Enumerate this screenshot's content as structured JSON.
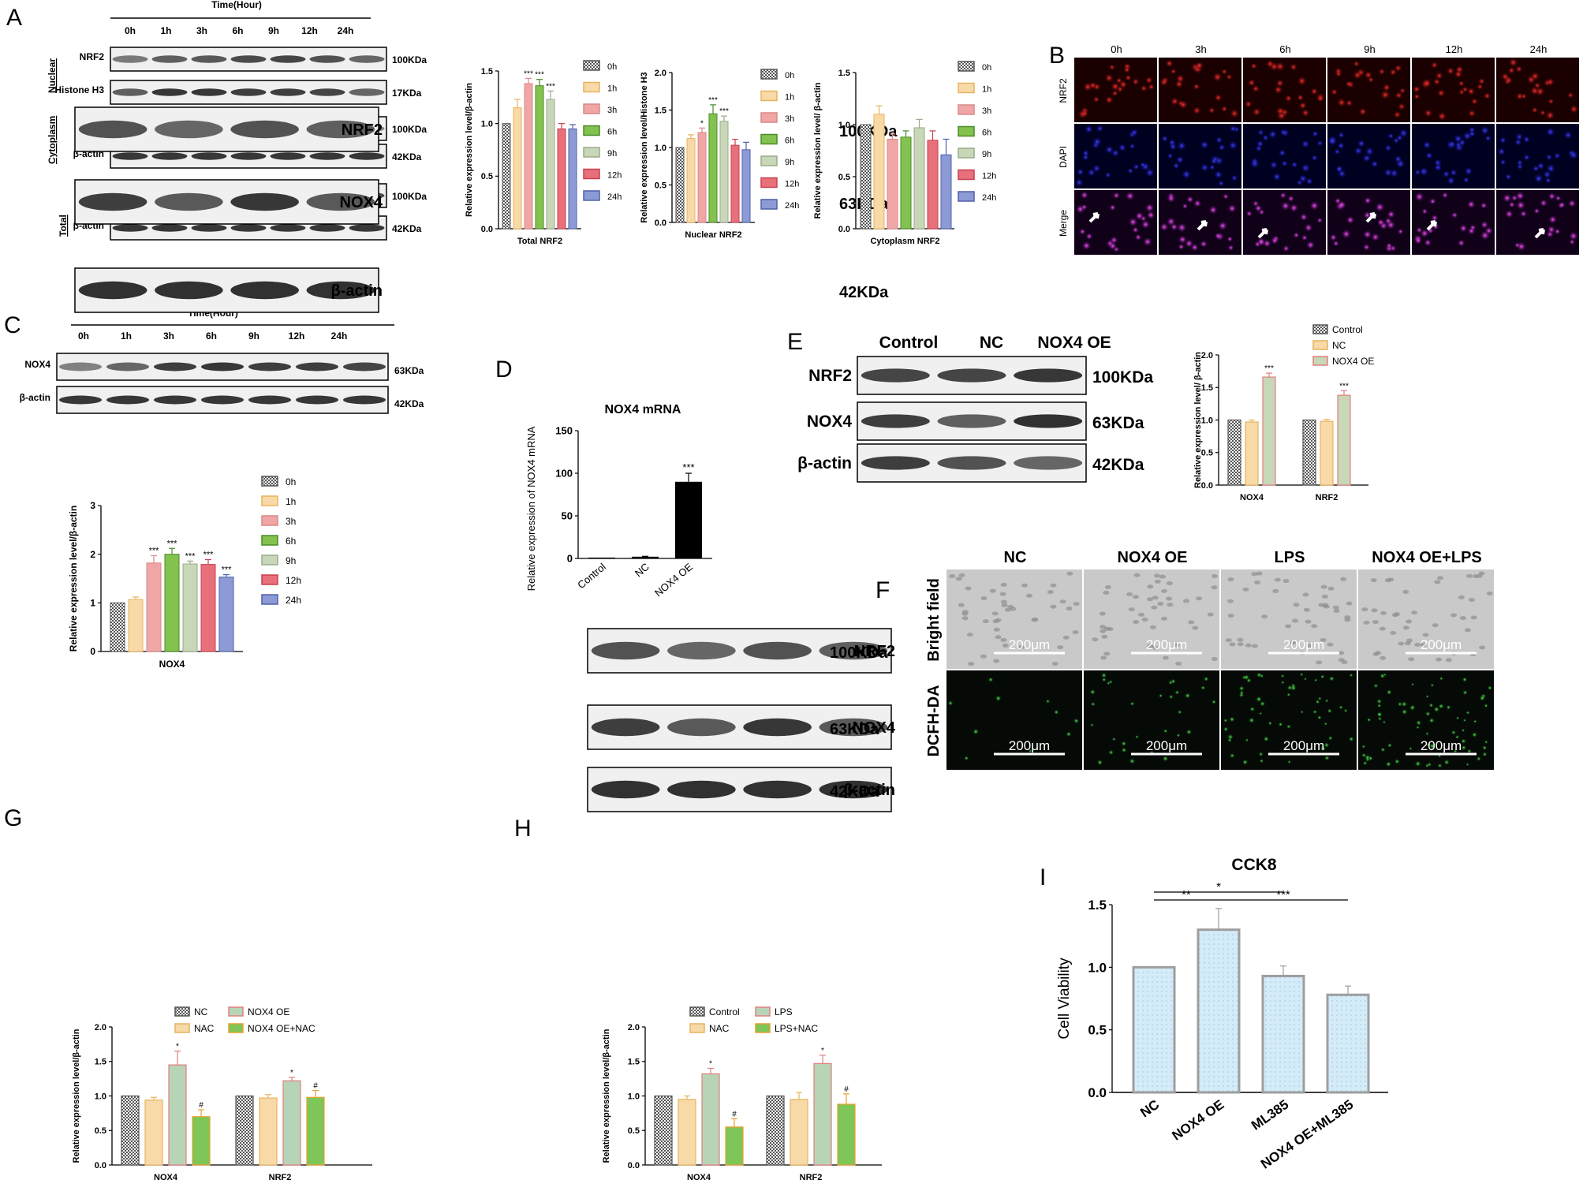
{
  "panels": {
    "A": "A",
    "B": "B",
    "C": "C",
    "D": "D",
    "E": "E",
    "F": "F",
    "G": "G",
    "H": "H",
    "I": "I"
  },
  "colors": {
    "0h": "#d9d9d9",
    "1h": "#f8d9a8",
    "3h": "#f1a6a6",
    "6h": "#84c24f",
    "9h": "#c8d7b8",
    "12h": "#e8707a",
    "24h": "#8c9bd6",
    "nac": "#f8d9a8",
    "nox4oe": "#b8d4b6",
    "combo": "#7dc657",
    "cck8_fill": "#d4ebf8",
    "cck8_stroke": "#9e9e9e"
  },
  "panelA": {
    "time_header": "Time(Hour)",
    "times": [
      "0h",
      "1h",
      "3h",
      "6h",
      "9h",
      "12h",
      "24h"
    ],
    "groups": [
      "Nuclear",
      "Cytoplasm",
      "Total"
    ],
    "rows": [
      {
        "label": "NRF2",
        "kda": "100KDa"
      },
      {
        "label": "Histone H3",
        "kda": "17KDa"
      },
      {
        "label": "NRF2",
        "kda": "100KDa"
      },
      {
        "label": "β-actin",
        "kda": "42KDa"
      },
      {
        "label": "NRF2",
        "kda": "100KDa"
      },
      {
        "label": "β-actin",
        "kda": "42KDa"
      }
    ]
  },
  "panelC": {
    "time_header": "Time(Hour)",
    "times": [
      "0h",
      "1h",
      "3h",
      "6h",
      "9h",
      "12h",
      "24h"
    ],
    "rows": [
      {
        "label": "NOX4",
        "kda": "63KDa"
      },
      {
        "label": "β-actin",
        "kda": "42KDa"
      }
    ]
  },
  "panelB": {
    "times": [
      "0h",
      "3h",
      "6h",
      "9h",
      "12h",
      "24h"
    ],
    "rows": [
      "NRF2",
      "DAPI",
      "Merge"
    ]
  },
  "panelE": {
    "columns": [
      "Control",
      "NC",
      "NOX4 OE"
    ],
    "rows": [
      {
        "label": "NRF2",
        "kda": "100KDa"
      },
      {
        "label": "NOX4",
        "kda": "63KDa"
      },
      {
        "label": "β-actin",
        "kda": "42KDa"
      }
    ]
  },
  "panelF": {
    "columns": [
      "NC",
      "NOX4 OE",
      "LPS",
      "NOX4 OE+LPS"
    ],
    "rows": [
      "Bright field",
      "DCFH-DA"
    ],
    "scale_bar": "200μm"
  },
  "panelG": {
    "columns": [
      "NC",
      "NAC",
      "NOX4 OE",
      "NOX4 OE+NAC"
    ],
    "rows": [
      {
        "label": "NRF2",
        "kda": "100KDa"
      },
      {
        "label": "NOX4",
        "kda": "63KDa"
      },
      {
        "label": "β-actin",
        "kda": "42KDa"
      }
    ]
  },
  "panelH": {
    "columns": [
      "Control",
      "NAC",
      "LPS",
      "LPS+NAC"
    ],
    "rows": [
      {
        "label": "NRF2",
        "kda": "100KDa"
      },
      {
        "label": "NOX4",
        "kda": "63KDa"
      },
      {
        "label": "β-actin",
        "kda": "42KDa"
      }
    ]
  },
  "chart_data": [
    {
      "id": "A1",
      "type": "bar",
      "xlabel": "Total  NRF2",
      "ylabel": "Relative expression level/β-actin",
      "ylim": [
        0,
        1.5
      ],
      "yticks": [
        "0.0",
        "0.5",
        "1.0",
        "1.5"
      ],
      "legend": [
        "0h",
        "1h",
        "3h",
        "6h",
        "9h",
        "12h",
        "24h"
      ],
      "legend_position": "right",
      "values": [
        1.0,
        1.15,
        1.38,
        1.36,
        1.23,
        0.95,
        0.95
      ],
      "errors": [
        0,
        0.08,
        0.05,
        0.06,
        0.08,
        0.05,
        0.04
      ],
      "sig": [
        "",
        "",
        "***",
        "***",
        "***",
        "",
        ""
      ]
    },
    {
      "id": "A2",
      "type": "bar",
      "xlabel": "Nuclear NRF2",
      "ylabel": "Relative expression level/Histone H3",
      "ylim": [
        0,
        2.0
      ],
      "yticks": [
        "0.0",
        "0.5",
        "1.0",
        "1.5",
        "2.0"
      ],
      "legend": [
        "0h",
        "1h",
        "3h",
        "6h",
        "9h",
        "12h",
        "24h"
      ],
      "legend_position": "right",
      "values": [
        1.0,
        1.12,
        1.2,
        1.45,
        1.35,
        1.03,
        0.97
      ],
      "errors": [
        0,
        0.05,
        0.06,
        0.12,
        0.07,
        0.08,
        0.1
      ],
      "sig": [
        "",
        "",
        "*",
        "***",
        "***",
        "",
        ""
      ]
    },
    {
      "id": "A3",
      "type": "bar",
      "xlabel": "Cytoplasm NRF2",
      "ylabel": "Relative expression level/ β-actin",
      "ylim": [
        0,
        1.5
      ],
      "yticks": [
        "0.0",
        "0.5",
        "1.0",
        "1.5"
      ],
      "legend": [
        "0h",
        "1h",
        "3h",
        "6h",
        "9h",
        "12h",
        "24h"
      ],
      "legend_position": "right",
      "values": [
        1.0,
        1.1,
        0.86,
        0.88,
        0.97,
        0.85,
        0.71
      ],
      "errors": [
        0,
        0.08,
        0.05,
        0.06,
        0.08,
        0.09,
        0.15
      ],
      "sig": [
        "",
        "",
        "",
        "",
        "",
        "",
        ""
      ]
    },
    {
      "id": "C1",
      "type": "bar",
      "xlabel": "NOX4",
      "ylabel": "Relative expression level/β-actin",
      "ylim": [
        0,
        3
      ],
      "yticks": [
        "0",
        "1",
        "2",
        "3"
      ],
      "legend": [
        "0h",
        "1h",
        "3h",
        "6h",
        "9h",
        "12h",
        "24h"
      ],
      "legend_position": "right",
      "values": [
        1.0,
        1.07,
        1.82,
        2.0,
        1.8,
        1.79,
        1.53
      ],
      "errors": [
        0,
        0.05,
        0.15,
        0.12,
        0.06,
        0.1,
        0.05
      ],
      "sig": [
        "",
        "",
        "***",
        "***",
        "***",
        "***",
        "***"
      ]
    },
    {
      "id": "D",
      "type": "bar",
      "title": "NOX4 mRNA",
      "ylabel": "Relative expression of NOX4 mRNA",
      "categories": [
        "Control",
        "NC",
        "NOX4 OE"
      ],
      "ylim": [
        0,
        150
      ],
      "yticks": [
        "0",
        "50",
        "100",
        "150"
      ],
      "values": [
        1,
        2,
        90
      ],
      "errors": [
        0,
        0.5,
        10
      ],
      "sig": [
        "",
        "",
        "***"
      ]
    },
    {
      "id": "E",
      "type": "bar",
      "ylabel": "Relative expression level/ β-actin",
      "categories": [
        "NOX4",
        "NRF2"
      ],
      "ylim": [
        0,
        2.0
      ],
      "yticks": [
        "0.0",
        "0.5",
        "1.0",
        "1.5",
        "2.0"
      ],
      "legend_position": "top",
      "series": [
        {
          "name": "Control",
          "values": [
            1.0,
            1.0
          ]
        },
        {
          "name": "NC",
          "values": [
            0.97,
            0.98
          ]
        },
        {
          "name": "NOX4 OE",
          "values": [
            1.66,
            1.38
          ]
        }
      ],
      "errors": [
        [
          0,
          0
        ],
        [
          0.03,
          0.03
        ],
        [
          0.06,
          0.07
        ]
      ],
      "sig": [
        [
          "",
          ""
        ],
        [
          "",
          ""
        ],
        [
          "***",
          "***"
        ]
      ]
    },
    {
      "id": "G",
      "type": "bar",
      "ylabel": "Relative expression level/β-actin",
      "categories": [
        "NOX4",
        "NRF2"
      ],
      "ylim": [
        0,
        2.0
      ],
      "yticks": [
        "0.0",
        "0.5",
        "1.0",
        "1.5",
        "2.0"
      ],
      "legend_position": "top",
      "series": [
        {
          "name": "NC",
          "values": [
            1.0,
            1.0
          ]
        },
        {
          "name": "NAC",
          "values": [
            0.94,
            0.97
          ]
        },
        {
          "name": "NOX4 OE",
          "values": [
            1.45,
            1.22
          ]
        },
        {
          "name": "NOX4 OE+NAC",
          "values": [
            0.7,
            0.98
          ]
        }
      ],
      "errors": [
        [
          0,
          0
        ],
        [
          0.04,
          0.05
        ],
        [
          0.2,
          0.05
        ],
        [
          0.1,
          0.1
        ]
      ],
      "sig": [
        [
          "",
          ""
        ],
        [
          "",
          ""
        ],
        [
          "*",
          "*"
        ],
        [
          "#",
          "#"
        ]
      ]
    },
    {
      "id": "H",
      "type": "bar",
      "ylabel": "Relative expression level/β-actin",
      "categories": [
        "NOX4",
        "NRF2"
      ],
      "ylim": [
        0,
        2.0
      ],
      "yticks": [
        "0.0",
        "0.5",
        "1.0",
        "1.5",
        "2.0"
      ],
      "legend_position": "top",
      "series": [
        {
          "name": "Control",
          "values": [
            1.0,
            1.0
          ]
        },
        {
          "name": "NAC",
          "values": [
            0.95,
            0.95
          ]
        },
        {
          "name": "LPS",
          "values": [
            1.32,
            1.47
          ]
        },
        {
          "name": "LPS+NAC",
          "values": [
            0.55,
            0.88
          ]
        }
      ],
      "errors": [
        [
          0,
          0
        ],
        [
          0.05,
          0.1
        ],
        [
          0.08,
          0.12
        ],
        [
          0.12,
          0.15
        ]
      ],
      "sig": [
        [
          "",
          ""
        ],
        [
          "",
          ""
        ],
        [
          "*",
          "*"
        ],
        [
          "#",
          "#"
        ]
      ]
    },
    {
      "id": "I",
      "type": "bar",
      "title": "CCK8",
      "ylabel": "Cell Viability",
      "categories": [
        "NC",
        "NOX4 OE",
        "ML385",
        "NOX4 OE+ML385"
      ],
      "ylim": [
        0,
        1.5
      ],
      "yticks": [
        "0.0",
        "0.5",
        "1.0",
        "1.5"
      ],
      "values": [
        1.0,
        1.3,
        0.93,
        0.78
      ],
      "errors": [
        0,
        0.17,
        0.08,
        0.07
      ],
      "comparisons": [
        {
          "from": 0,
          "to": 1,
          "label": "**"
        },
        {
          "from": 0,
          "to": 2,
          "label": "*"
        },
        {
          "from": 1,
          "to": 3,
          "label": "***"
        }
      ]
    }
  ]
}
